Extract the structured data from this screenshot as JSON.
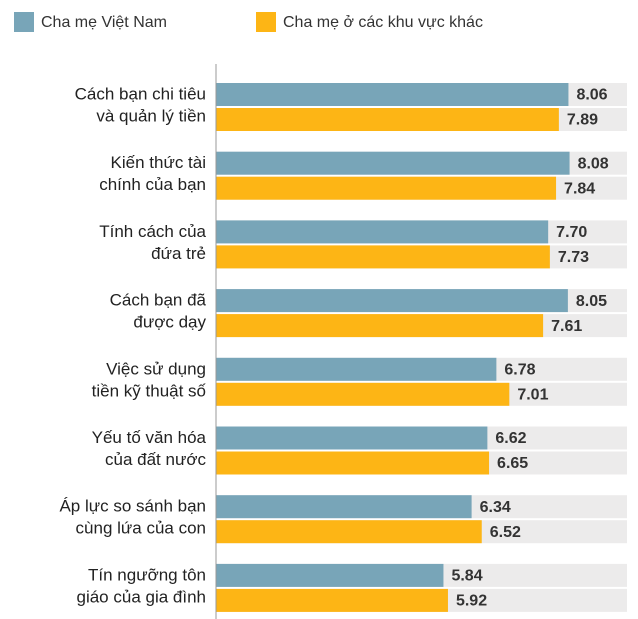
{
  "chart_data": {
    "type": "hbar",
    "categories": [
      [
        "Cách bạn chi tiêu",
        "và quản lý tiền"
      ],
      [
        "Kiến thức tài",
        "chính của bạn"
      ],
      [
        "Tính cách của",
        "đứa trẻ"
      ],
      [
        "Cách bạn đã",
        "được dạy"
      ],
      [
        "Việc sử dụng",
        "tiền kỹ thuật số"
      ],
      [
        "Yếu tố văn hóa",
        "của đất nước"
      ],
      [
        "Áp lực so sánh bạn",
        "cùng lứa của con"
      ],
      [
        "Tín ngưỡng tôn",
        "giáo của gia đình"
      ]
    ],
    "series": [
      {
        "name": "Cha mẹ Việt Nam",
        "color": "#78a5b8",
        "values": [
          8.06,
          8.08,
          7.7,
          8.05,
          6.78,
          6.62,
          6.34,
          5.84
        ],
        "value_labels": [
          "8.06",
          "8.08",
          "7.70",
          "8.05",
          "6.78",
          "6.62",
          "6.34",
          "5.84"
        ]
      },
      {
        "name": "Cha mẹ ở các khu vực khác",
        "color": "#fdb515",
        "values": [
          7.89,
          7.84,
          7.73,
          7.61,
          7.01,
          6.65,
          6.52,
          5.92
        ],
        "value_labels": [
          "7.89",
          "7.84",
          "7.73",
          "7.61",
          "7.01",
          "6.65",
          "6.52",
          "5.92"
        ]
      }
    ],
    "xlim": [
      1.8,
      9.1
    ],
    "legend": "top-left"
  }
}
